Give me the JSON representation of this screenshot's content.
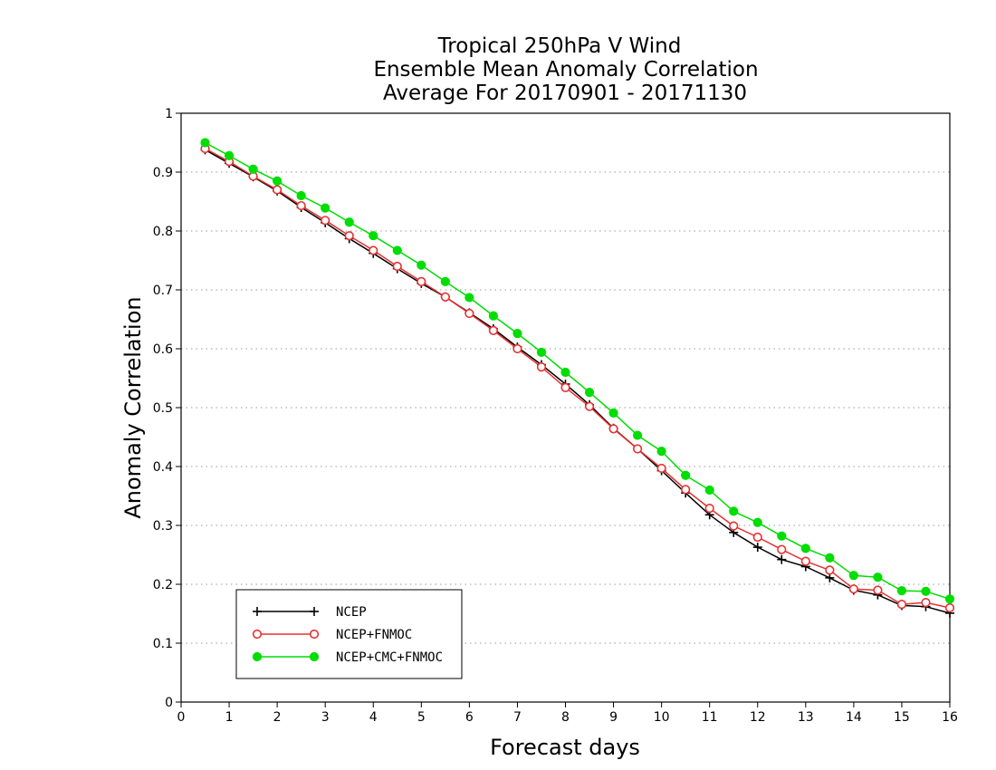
{
  "chart_data": {
    "type": "line",
    "title_lines": [
      "Tropical 250hPa V Wind",
      "Ensemble Mean Anomaly Correlation",
      "Average For 20170901 - 20171130"
    ],
    "xlabel": "Forecast days",
    "ylabel": "Anomaly Correlation",
    "xlim": [
      0,
      16
    ],
    "ylim": [
      0,
      1
    ],
    "x_ticks": [
      "0",
      "1",
      "2",
      "3",
      "4",
      "5",
      "6",
      "7",
      "8",
      "9",
      "10",
      "11",
      "12",
      "13",
      "14",
      "15",
      "16"
    ],
    "y_ticks": [
      "0",
      "0.1",
      "0.2",
      "0.3",
      "0.4",
      "0.5",
      "0.6",
      "0.7",
      "0.8",
      "0.9",
      "1"
    ],
    "grid": "horizontal dotted",
    "legend_position": "bottom-left",
    "x": [
      0.5,
      1,
      1.5,
      2,
      2.5,
      3,
      3.5,
      4,
      4.5,
      5,
      5.5,
      6,
      6.5,
      7,
      7.5,
      8,
      8.5,
      9,
      9.5,
      10,
      10.5,
      11,
      11.5,
      12,
      12.5,
      13,
      13.5,
      14,
      14.5,
      15,
      15.5,
      16
    ],
    "series": [
      {
        "name": "NCEP",
        "color": "#000000",
        "marker": "plus",
        "values": [
          0.938,
          0.915,
          0.892,
          0.868,
          0.84,
          0.814,
          0.787,
          0.762,
          0.736,
          0.711,
          0.688,
          0.661,
          0.634,
          0.603,
          0.573,
          0.54,
          0.505,
          0.465,
          0.43,
          0.393,
          0.355,
          0.318,
          0.288,
          0.263,
          0.242,
          0.23,
          0.211,
          0.19,
          0.182,
          0.164,
          0.162,
          0.151
        ]
      },
      {
        "name": "NCEP+FNMOC",
        "color": "#e83030",
        "marker": "open-circle",
        "values": [
          0.94,
          0.918,
          0.893,
          0.87,
          0.843,
          0.818,
          0.792,
          0.767,
          0.74,
          0.714,
          0.688,
          0.66,
          0.631,
          0.6,
          0.569,
          0.534,
          0.502,
          0.464,
          0.43,
          0.397,
          0.361,
          0.329,
          0.299,
          0.28,
          0.259,
          0.239,
          0.224,
          0.192,
          0.19,
          0.166,
          0.169,
          0.16
        ]
      },
      {
        "name": "NCEP+CMC+FNMOC",
        "color": "#00dd00",
        "marker": "filled-circle",
        "values": [
          0.95,
          0.928,
          0.905,
          0.885,
          0.86,
          0.839,
          0.815,
          0.792,
          0.767,
          0.742,
          0.714,
          0.687,
          0.656,
          0.626,
          0.594,
          0.56,
          0.526,
          0.491,
          0.453,
          0.426,
          0.385,
          0.36,
          0.324,
          0.305,
          0.282,
          0.261,
          0.245,
          0.215,
          0.212,
          0.189,
          0.188,
          0.175
        ]
      }
    ]
  }
}
